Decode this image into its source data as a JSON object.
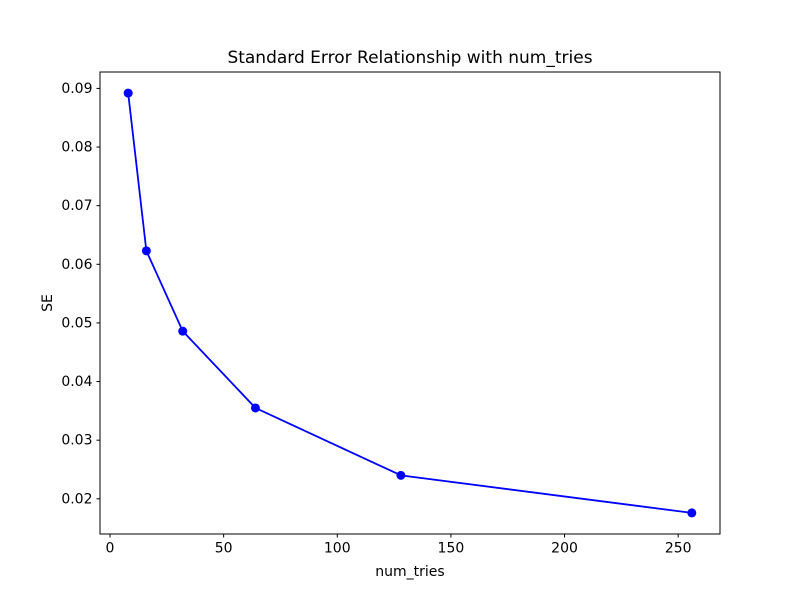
{
  "figure": {
    "background": "#ffffff",
    "spine_color": "#000000"
  },
  "chart_data": {
    "type": "line",
    "title": "Standard Error Relationship with num_tries",
    "xlabel": "num_tries",
    "ylabel": "SE",
    "series": [
      {
        "name": "SE",
        "x": [
          8,
          16,
          32,
          64,
          128,
          256
        ],
        "y": [
          0.0892,
          0.0623,
          0.0486,
          0.0355,
          0.024,
          0.0176
        ],
        "color": "#0000ff",
        "marker": "circle",
        "marker_radius": 4.5,
        "line_width": 1.8
      }
    ],
    "xlim": [
      -4.4,
      268.4
    ],
    "ylim": [
      0.014,
      0.0928
    ],
    "xticks": [
      0,
      50,
      100,
      150,
      200,
      250
    ],
    "yticks": [
      0.02,
      0.03,
      0.04,
      0.05,
      0.06,
      0.07,
      0.08,
      0.09
    ],
    "ytick_decimals": 2,
    "grid": false,
    "legend": null
  }
}
